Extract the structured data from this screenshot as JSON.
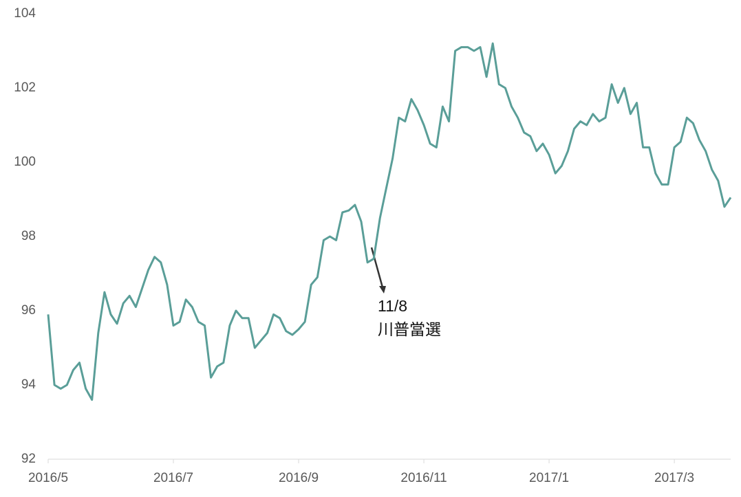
{
  "chart_data": {
    "type": "line",
    "categories": [
      "2016/5",
      null,
      null,
      null,
      null,
      null,
      null,
      null,
      null,
      null,
      null,
      null,
      null,
      null,
      null,
      null,
      null,
      null,
      null,
      null,
      "2016/7",
      null,
      null,
      null,
      null,
      null,
      null,
      null,
      null,
      null,
      null,
      null,
      null,
      null,
      null,
      null,
      null,
      null,
      null,
      null,
      "2016/9",
      null,
      null,
      null,
      null,
      null,
      null,
      null,
      null,
      null,
      null,
      null,
      null,
      null,
      null,
      null,
      null,
      null,
      null,
      null,
      "2016/11",
      null,
      null,
      null,
      null,
      null,
      null,
      null,
      null,
      null,
      null,
      null,
      null,
      null,
      null,
      null,
      null,
      null,
      null,
      null,
      "2017/1",
      null,
      null,
      null,
      null,
      null,
      null,
      null,
      null,
      null,
      null,
      null,
      null,
      null,
      null,
      null,
      null,
      null,
      null,
      null,
      "2017/3",
      null,
      null,
      null,
      null,
      null,
      null,
      null,
      null,
      null
    ],
    "values": [
      95.9,
      94.0,
      93.9,
      94.0,
      94.4,
      94.6,
      93.9,
      93.6,
      95.4,
      96.5,
      95.9,
      95.65,
      96.2,
      96.4,
      96.1,
      96.6,
      97.1,
      97.45,
      97.3,
      96.7,
      95.6,
      95.7,
      96.3,
      96.1,
      95.7,
      95.6,
      94.2,
      94.5,
      94.6,
      95.6,
      96.0,
      95.8,
      95.8,
      95.0,
      95.2,
      95.4,
      95.9,
      95.8,
      95.45,
      95.35,
      95.5,
      95.7,
      96.7,
      96.9,
      97.9,
      98.0,
      97.9,
      98.65,
      98.7,
      98.85,
      98.4,
      97.3,
      97.4,
      98.5,
      99.3,
      100.1,
      101.2,
      101.1,
      101.7,
      101.4,
      101.0,
      100.5,
      100.4,
      101.5,
      101.1,
      103.0,
      103.1,
      103.1,
      103.0,
      103.1,
      102.3,
      103.2,
      102.1,
      102.0,
      101.5,
      101.2,
      100.8,
      100.7,
      100.3,
      100.5,
      100.2,
      99.7,
      99.9,
      100.3,
      100.9,
      101.1,
      101.0,
      101.3,
      101.1,
      101.2,
      102.1,
      101.6,
      102.0,
      101.3,
      101.6,
      100.4,
      100.4,
      99.7,
      99.4,
      99.4,
      100.4,
      100.55,
      101.2,
      101.05,
      100.6,
      100.3,
      99.8,
      99.5,
      98.8,
      99.05
    ],
    "color": "#5a9e98",
    "ylim": [
      92,
      104
    ],
    "yticks": [
      92,
      94,
      96,
      98,
      100,
      102,
      104
    ],
    "annotation": [
      "11/8",
      "川普當選"
    ]
  }
}
